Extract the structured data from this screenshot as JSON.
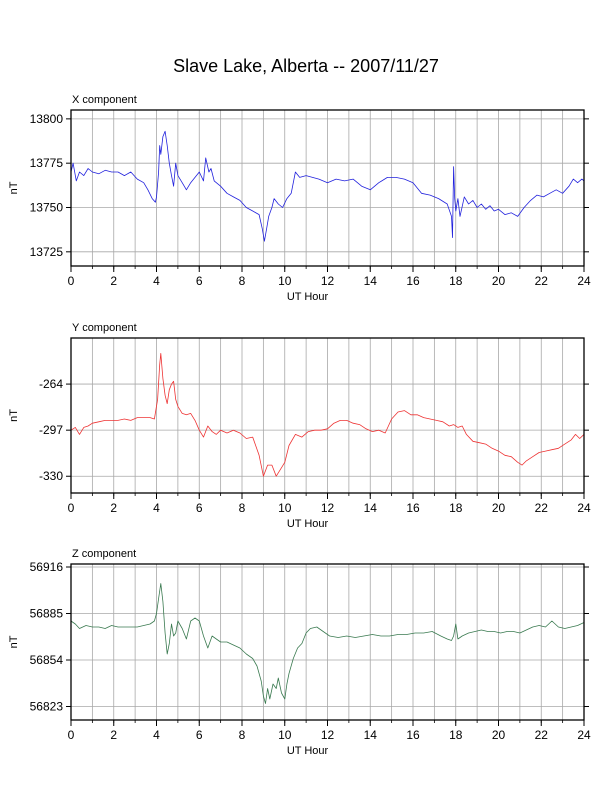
{
  "title": "Slave Lake, Alberta -- 2007/11/27",
  "chart_data": [
    {
      "type": "line",
      "title": "X component",
      "xlabel": "UT Hour",
      "ylabel": "nT",
      "xlim": [
        0,
        24
      ],
      "ylim": [
        13717,
        13805
      ],
      "x_ticks": [
        0,
        2,
        4,
        6,
        8,
        10,
        12,
        14,
        16,
        18,
        20,
        22,
        24
      ],
      "y_ticks": [
        13725,
        13750,
        13775,
        13800
      ],
      "grid": true,
      "color": "#2222dd",
      "series": [
        {
          "x": [
            0,
            0.1,
            0.25,
            0.4,
            0.6,
            0.8,
            1.0,
            1.3,
            1.6,
            1.9,
            2.2,
            2.5,
            2.8,
            3.1,
            3.4,
            3.6,
            3.8,
            3.95,
            4.0,
            4.1,
            4.15,
            4.2,
            4.3,
            4.4,
            4.5,
            4.6,
            4.7,
            4.8,
            4.9,
            5.0,
            5.2,
            5.4,
            5.6,
            5.8,
            6.0,
            6.2,
            6.3,
            6.45,
            6.55,
            6.7,
            7.0,
            7.3,
            7.6,
            7.9,
            8.2,
            8.5,
            8.8,
            8.95,
            9.05,
            9.15,
            9.25,
            9.4,
            9.5,
            9.7,
            9.9,
            10.1,
            10.3,
            10.5,
            10.7,
            11.0,
            11.3,
            11.6,
            12.0,
            12.4,
            12.8,
            13.2,
            13.6,
            14.0,
            14.4,
            14.8,
            15.2,
            15.6,
            16.0,
            16.4,
            16.8,
            17.2,
            17.6,
            17.8,
            17.85,
            17.9,
            17.95,
            18.0,
            18.1,
            18.2,
            18.4,
            18.6,
            18.8,
            19.0,
            19.2,
            19.4,
            19.6,
            19.8,
            20.0,
            20.3,
            20.6,
            20.9,
            21.2,
            21.5,
            21.8,
            22.1,
            22.4,
            22.7,
            23.0,
            23.3,
            23.5,
            23.7,
            23.9,
            24.0
          ],
          "y": [
            13770,
            13775,
            13765,
            13770,
            13768,
            13772,
            13770,
            13769,
            13771,
            13770,
            13770,
            13768,
            13770,
            13766,
            13764,
            13760,
            13755,
            13753,
            13756,
            13770,
            13785,
            13780,
            13790,
            13793,
            13785,
            13775,
            13768,
            13762,
            13775,
            13768,
            13764,
            13760,
            13764,
            13767,
            13770,
            13765,
            13778,
            13770,
            13772,
            13765,
            13762,
            13758,
            13756,
            13754,
            13750,
            13748,
            13746,
            13738,
            13731,
            13738,
            13745,
            13750,
            13755,
            13752,
            13750,
            13755,
            13758,
            13770,
            13767,
            13768,
            13767,
            13766,
            13764,
            13766,
            13765,
            13766,
            13762,
            13760,
            13764,
            13767,
            13767,
            13766,
            13764,
            13758,
            13757,
            13755,
            13752,
            13745,
            13733,
            13773,
            13755,
            13748,
            13755,
            13745,
            13756,
            13752,
            13754,
            13750,
            13752,
            13749,
            13751,
            13748,
            13749,
            13746,
            13747,
            13745,
            13750,
            13754,
            13757,
            13756,
            13758,
            13760,
            13758,
            13762,
            13766,
            13764,
            13766,
            13765
          ]
        }
      ]
    },
    {
      "type": "line",
      "title": "Y component",
      "xlabel": "UT Hour",
      "ylabel": "nT",
      "xlim": [
        0,
        24
      ],
      "ylim": [
        -342,
        -231
      ],
      "x_ticks": [
        0,
        2,
        4,
        6,
        8,
        10,
        12,
        14,
        16,
        18,
        20,
        22,
        24
      ],
      "y_ticks": [
        -330,
        -297,
        -264
      ],
      "grid": true,
      "color": "#ee3333",
      "series": [
        {
          "x": [
            0,
            0.2,
            0.4,
            0.6,
            0.8,
            1.0,
            1.3,
            1.6,
            1.9,
            2.2,
            2.5,
            2.8,
            3.1,
            3.4,
            3.7,
            3.9,
            4.05,
            4.15,
            4.2,
            4.3,
            4.4,
            4.5,
            4.6,
            4.7,
            4.8,
            4.9,
            5.0,
            5.2,
            5.4,
            5.6,
            5.8,
            6.0,
            6.2,
            6.4,
            6.6,
            6.8,
            7.0,
            7.3,
            7.6,
            7.9,
            8.2,
            8.5,
            8.8,
            9.0,
            9.2,
            9.4,
            9.6,
            9.8,
            10.0,
            10.2,
            10.5,
            10.8,
            11.1,
            11.4,
            11.7,
            12.0,
            12.3,
            12.6,
            12.9,
            13.2,
            13.5,
            13.8,
            14.1,
            14.4,
            14.7,
            15.0,
            15.3,
            15.6,
            15.9,
            16.2,
            16.5,
            16.8,
            17.1,
            17.4,
            17.7,
            17.9,
            18.1,
            18.3,
            18.5,
            18.8,
            19.1,
            19.4,
            19.7,
            20.0,
            20.3,
            20.6,
            20.9,
            21.1,
            21.3,
            21.6,
            21.9,
            22.2,
            22.5,
            22.8,
            23.1,
            23.4,
            23.6,
            23.8,
            24.0
          ],
          "y": [
            -297,
            -295,
            -300,
            -295,
            -294,
            -292,
            -291,
            -290,
            -290,
            -290,
            -289,
            -290,
            -288,
            -288,
            -288,
            -289,
            -275,
            -250,
            -242,
            -260,
            -272,
            -278,
            -268,
            -264,
            -262,
            -275,
            -280,
            -285,
            -286,
            -285,
            -290,
            -297,
            -302,
            -294,
            -298,
            -300,
            -297,
            -299,
            -297,
            -299,
            -303,
            -302,
            -315,
            -330,
            -322,
            -322,
            -330,
            -325,
            -320,
            -308,
            -300,
            -302,
            -298,
            -297,
            -297,
            -296,
            -292,
            -290,
            -290,
            -292,
            -293,
            -296,
            -298,
            -297,
            -299,
            -289,
            -284,
            -283,
            -286,
            -286,
            -288,
            -289,
            -290,
            -291,
            -294,
            -293,
            -295,
            -294,
            -300,
            -305,
            -306,
            -307,
            -310,
            -312,
            -315,
            -316,
            -320,
            -322,
            -319,
            -316,
            -313,
            -312,
            -311,
            -310,
            -307,
            -304,
            -300,
            -303,
            -300
          ]
        }
      ]
    },
    {
      "type": "line",
      "title": "Z component",
      "xlabel": "UT Hour",
      "ylabel": "nT",
      "xlim": [
        0,
        24
      ],
      "ylim": [
        56814,
        56918
      ],
      "x_ticks": [
        0,
        2,
        4,
        6,
        8,
        10,
        12,
        14,
        16,
        18,
        20,
        22,
        24
      ],
      "y_ticks": [
        56823,
        56854,
        56885,
        56916
      ],
      "grid": true,
      "color": "#3a7a50",
      "series": [
        {
          "x": [
            0,
            0.2,
            0.4,
            0.7,
            1.0,
            1.3,
            1.6,
            1.9,
            2.2,
            2.5,
            2.8,
            3.1,
            3.4,
            3.7,
            3.9,
            4.0,
            4.1,
            4.2,
            4.3,
            4.4,
            4.5,
            4.6,
            4.7,
            4.8,
            4.9,
            5.0,
            5.2,
            5.4,
            5.6,
            5.8,
            6.0,
            6.2,
            6.4,
            6.6,
            6.8,
            7.0,
            7.3,
            7.6,
            7.9,
            8.2,
            8.5,
            8.7,
            8.9,
            9.0,
            9.1,
            9.2,
            9.3,
            9.45,
            9.6,
            9.7,
            9.85,
            10.0,
            10.1,
            10.2,
            10.4,
            10.6,
            10.8,
            11.0,
            11.2,
            11.5,
            11.8,
            12.1,
            12.5,
            12.9,
            13.3,
            13.7,
            14.1,
            14.5,
            14.9,
            15.3,
            15.7,
            16.1,
            16.5,
            16.9,
            17.3,
            17.6,
            17.8,
            17.9,
            18.0,
            18.1,
            18.3,
            18.6,
            18.9,
            19.2,
            19.5,
            19.8,
            20.1,
            20.4,
            20.7,
            21.0,
            21.3,
            21.6,
            21.9,
            22.2,
            22.5,
            22.8,
            23.1,
            23.4,
            23.7,
            24.0
          ],
          "y": [
            56880,
            56878,
            56875,
            56877,
            56876,
            56876,
            56875,
            56877,
            56876,
            56876,
            56876,
            56876,
            56877,
            56878,
            56880,
            56885,
            56895,
            56905,
            56893,
            56872,
            56858,
            56865,
            56878,
            56870,
            56872,
            56880,
            56875,
            56868,
            56880,
            56882,
            56880,
            56870,
            56862,
            56870,
            56868,
            56866,
            56866,
            56864,
            56862,
            56858,
            56855,
            56850,
            56840,
            56830,
            56825,
            56835,
            56828,
            56838,
            56835,
            56842,
            56832,
            56828,
            56838,
            56845,
            56855,
            56862,
            56865,
            56872,
            56875,
            56876,
            56873,
            56870,
            56869,
            56870,
            56869,
            56870,
            56871,
            56870,
            56870,
            56871,
            56871,
            56872,
            56872,
            56873,
            56870,
            56868,
            56867,
            56870,
            56878,
            56868,
            56870,
            56872,
            56873,
            56874,
            56873,
            56873,
            56872,
            56873,
            56873,
            56872,
            56874,
            56876,
            56877,
            56876,
            56880,
            56876,
            56875,
            56876,
            56877,
            56879
          ]
        }
      ]
    }
  ]
}
